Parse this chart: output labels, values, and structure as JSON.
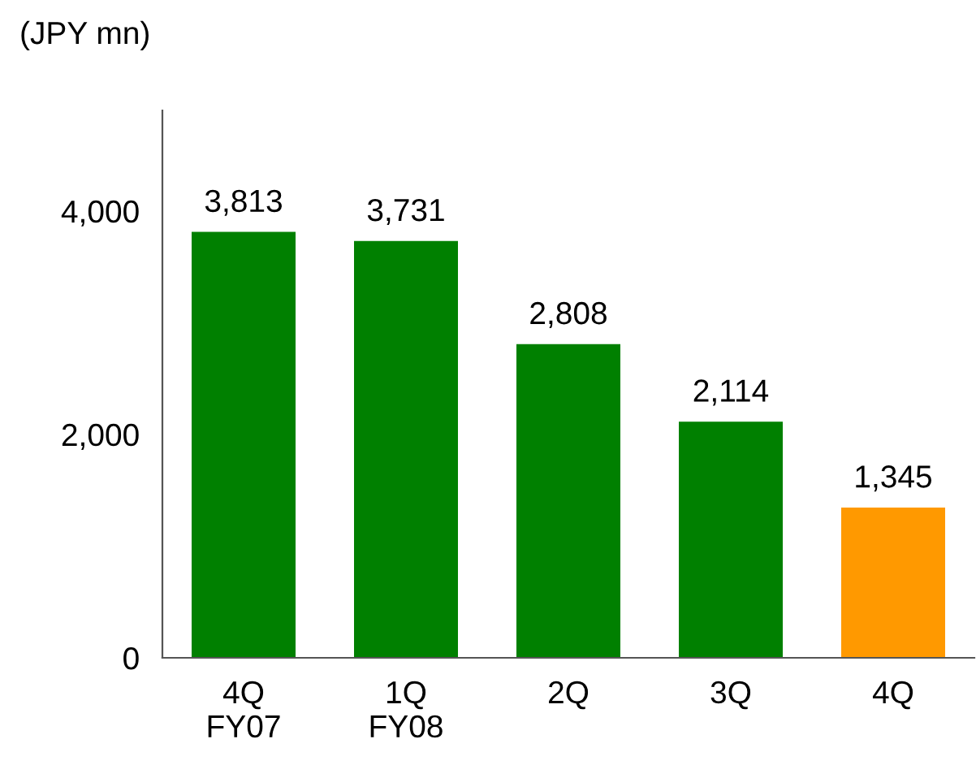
{
  "chart_data": {
    "type": "bar",
    "ylabel": "(JPY mn)",
    "categories": [
      "4Q\nFY07",
      "1Q\nFY08",
      "2Q",
      "3Q",
      "4Q"
    ],
    "values": [
      3813,
      3731,
      2808,
      2114,
      1345
    ],
    "colors": [
      "#008000",
      "#008000",
      "#008000",
      "#008000",
      "#ff9900"
    ],
    "value_labels": [
      "3,813",
      "3,731",
      "2,808",
      "2,114",
      "1,345"
    ],
    "ylim": [
      0,
      4900
    ],
    "yticks": [
      {
        "value": 0,
        "label": "0"
      },
      {
        "value": 2000,
        "label": "2,000"
      },
      {
        "value": 4000,
        "label": "4,000"
      }
    ],
    "grid": false,
    "legend": false
  }
}
